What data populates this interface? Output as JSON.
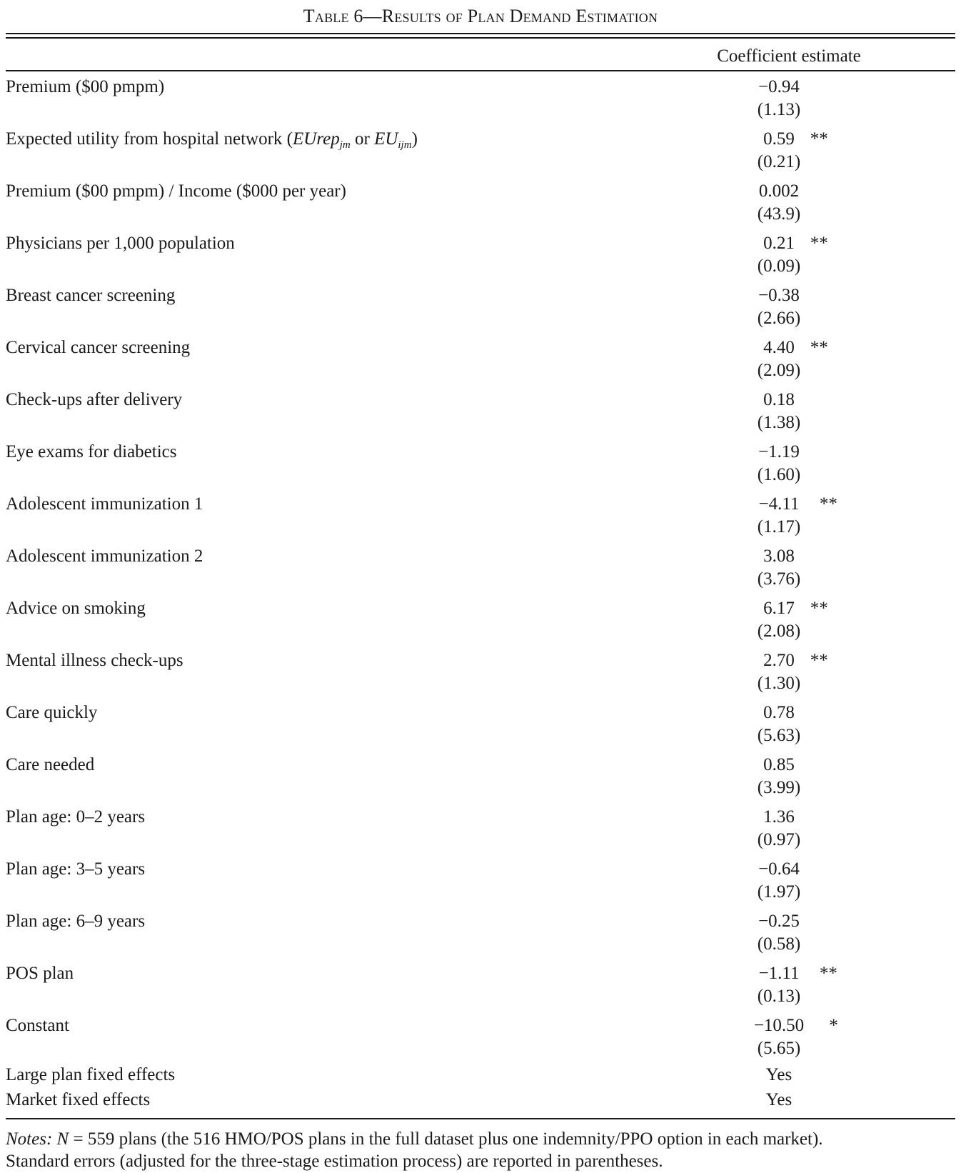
{
  "table": {
    "title_prefix": "Table 6",
    "title_dash": "—",
    "title_rest": "Results of Plan Demand Estimation",
    "column_header": "Coefficient estimate",
    "rows": [
      {
        "label": "Premium ($00 pmpm)",
        "coef": "−0.94",
        "stars": "",
        "se": "(1.13)"
      },
      {
        "label_parts": [
          "Expected utility from hospital network (",
          "EUrep",
          "jm",
          " or ",
          "EU",
          "ijm",
          ")"
        ],
        "coef": "0.59",
        "stars": "**",
        "se": "(0.21)"
      },
      {
        "label": "Premium ($00 pmpm) / Income ($000 per year)",
        "coef": "0.002",
        "stars": "",
        "se": "(43.9)"
      },
      {
        "label": "Physicians per 1,000 population",
        "coef": "0.21",
        "stars": "**",
        "se": "(0.09)"
      },
      {
        "label": "Breast cancer screening",
        "coef": "−0.38",
        "stars": "",
        "se": "(2.66)"
      },
      {
        "label": "Cervical cancer screening",
        "coef": "4.40",
        "stars": "**",
        "se": "(2.09)"
      },
      {
        "label": "Check-ups after delivery",
        "coef": "0.18",
        "stars": "",
        "se": "(1.38)"
      },
      {
        "label": "Eye exams for diabetics",
        "coef": "−1.19",
        "stars": "",
        "se": "(1.60)"
      },
      {
        "label": "Adolescent immunization 1",
        "coef": "−4.11",
        "stars": "**",
        "se": "(1.17)"
      },
      {
        "label": "Adolescent immunization 2",
        "coef": "3.08",
        "stars": "",
        "se": "(3.76)"
      },
      {
        "label": "Advice on smoking",
        "coef": "6.17",
        "stars": "**",
        "se": "(2.08)"
      },
      {
        "label": "Mental illness check-ups",
        "coef": "2.70",
        "stars": "**",
        "se": "(1.30)"
      },
      {
        "label": "Care quickly",
        "coef": "0.78",
        "stars": "",
        "se": "(5.63)"
      },
      {
        "label": "Care needed",
        "coef": "0.85",
        "stars": "",
        "se": "(3.99)"
      },
      {
        "label": "Plan age: 0–2 years",
        "coef": "1.36",
        "stars": "",
        "se": "(0.97)"
      },
      {
        "label": "Plan age: 3–5 years",
        "coef": "−0.64",
        "stars": "",
        "se": "(1.97)"
      },
      {
        "label": "Plan age: 6–9 years",
        "coef": "−0.25",
        "stars": "",
        "se": "(0.58)"
      },
      {
        "label": "POS plan",
        "coef": "−1.11",
        "stars": "**",
        "se": "(0.13)"
      },
      {
        "label": "Constant",
        "coef": "−10.50",
        "stars": "*",
        "se": "(5.65)"
      }
    ],
    "fixed_effects": [
      {
        "label": "Large plan fixed effects",
        "value": "Yes"
      },
      {
        "label": "Market fixed effects",
        "value": "Yes"
      }
    ],
    "notes": {
      "lead": "Notes:",
      "n_symbol": "N",
      "text_1": " = 559 plans (the 516 HMO/POS plans in the full dataset plus one indemnity/PPO option in each market).",
      "text_2": "Standard errors (adjusted for the three-stage estimation process) are reported in parentheses."
    }
  }
}
